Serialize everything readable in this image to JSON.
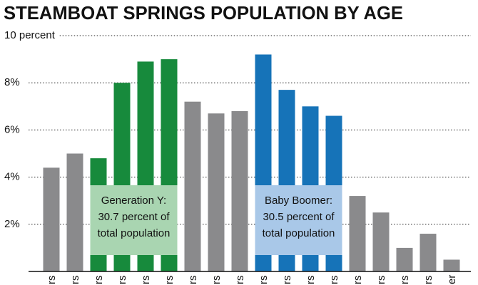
{
  "chart_data": {
    "type": "bar",
    "title": "STEAMBOAT SPRINGS POPULATION BY AGE",
    "categories": [
      "rs",
      "rs",
      "rs",
      "rs",
      "rs",
      "rs",
      "rs",
      "rs",
      "rs",
      "rs",
      "rs",
      "rs",
      "rs",
      "rs",
      "rs",
      "rs",
      "rs",
      "er"
    ],
    "values": [
      4.4,
      5.0,
      4.8,
      8.0,
      8.9,
      9.0,
      7.2,
      6.7,
      6.8,
      9.2,
      7.7,
      7.0,
      6.6,
      3.2,
      2.5,
      1.0,
      1.6,
      0.5
    ],
    "colors": [
      "#8a8a8c",
      "#8a8a8c",
      "#178a3c",
      "#178a3c",
      "#178a3c",
      "#178a3c",
      "#8a8a8c",
      "#8a8a8c",
      "#8a8a8c",
      "#1673b8",
      "#1673b8",
      "#1673b8",
      "#1673b8",
      "#8a8a8c",
      "#8a8a8c",
      "#8a8a8c",
      "#8a8a8c",
      "#8a8a8c"
    ],
    "ylim": [
      0,
      10
    ],
    "yticks": [
      {
        "value": 2,
        "label": "2%"
      },
      {
        "value": 4,
        "label": "4%"
      },
      {
        "value": 6,
        "label": "6%"
      },
      {
        "value": 8,
        "label": "8%"
      },
      {
        "value": 10,
        "label": "10 percent"
      }
    ],
    "grid": true,
    "annotations": [
      {
        "lines": [
          "Generation Y:",
          "30.7 percent of",
          "total population"
        ],
        "color": "#a9d5b1",
        "from": 2,
        "to": 5
      },
      {
        "lines": [
          "Baby Boomer:",
          "30.5 percent of",
          "total population"
        ],
        "color": "#a9c8e8",
        "from": 9,
        "to": 12
      }
    ]
  }
}
